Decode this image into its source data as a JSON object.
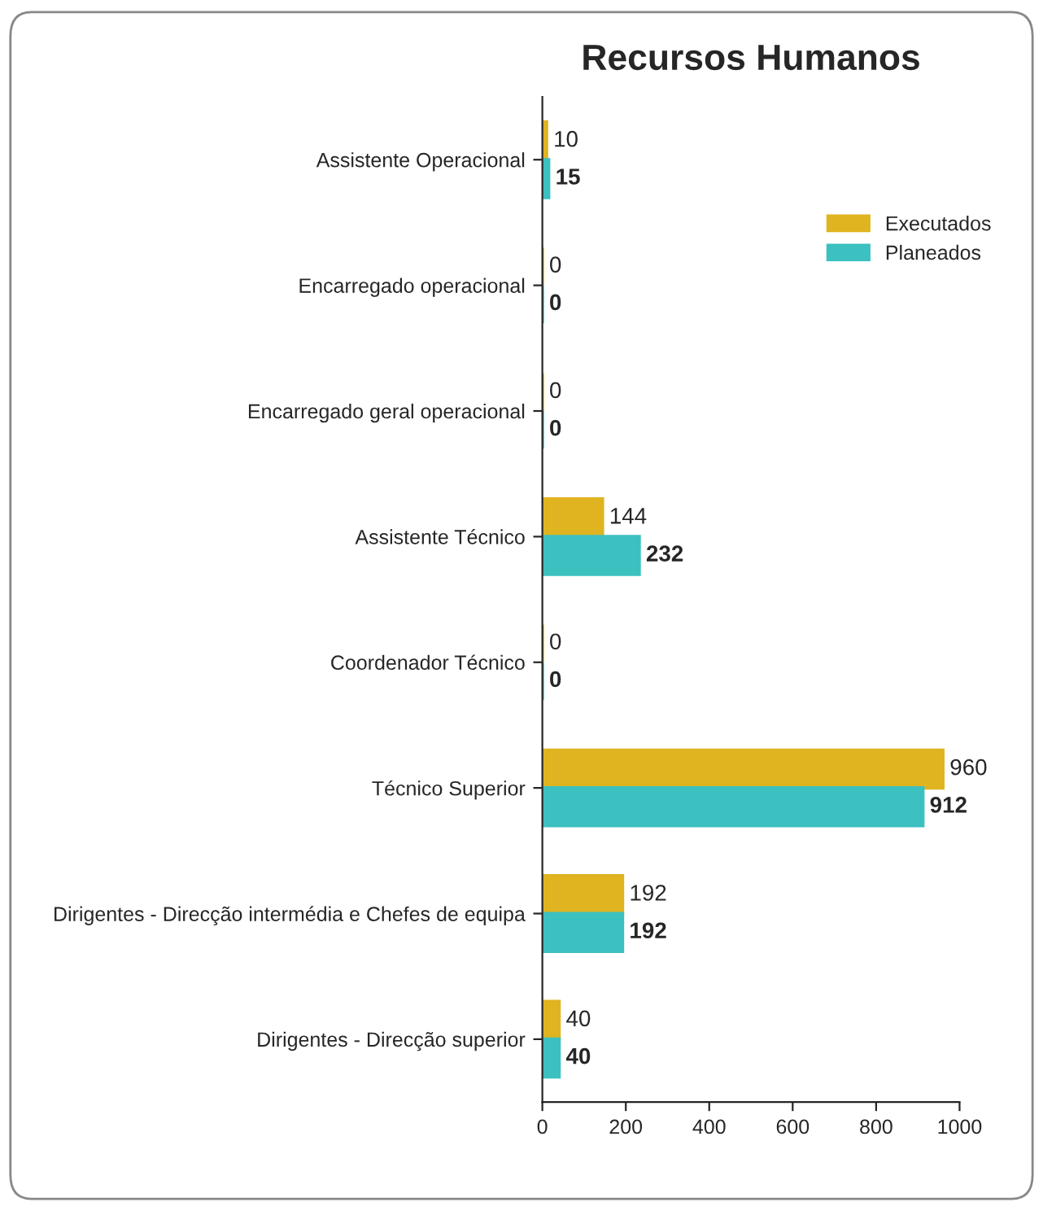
{
  "chart_data": {
    "type": "bar",
    "orientation": "horizontal",
    "title": "Recursos Humanos",
    "categories": [
      "Assistente Operacional",
      "Encarregado operacional",
      "Encarregado geral operacional",
      "Assistente Técnico",
      "Coordenador Técnico",
      "Técnico Superior",
      "Dirigentes - Direcção intermédia e Chefes de equipa",
      "Dirigentes - Direcção superior"
    ],
    "series": [
      {
        "name": "Executados",
        "color": "#e0b420",
        "values": [
          10,
          0,
          0,
          144,
          0,
          960,
          192,
          40
        ]
      },
      {
        "name": "Planeados",
        "color": "#3cc0c0",
        "values": [
          15,
          0,
          0,
          232,
          0,
          912,
          192,
          40
        ]
      }
    ],
    "xlim": [
      0,
      1000
    ],
    "xticks": [
      0,
      200,
      400,
      600,
      800,
      1000
    ],
    "grid": false,
    "legend": "top right",
    "data_labels": true
  }
}
